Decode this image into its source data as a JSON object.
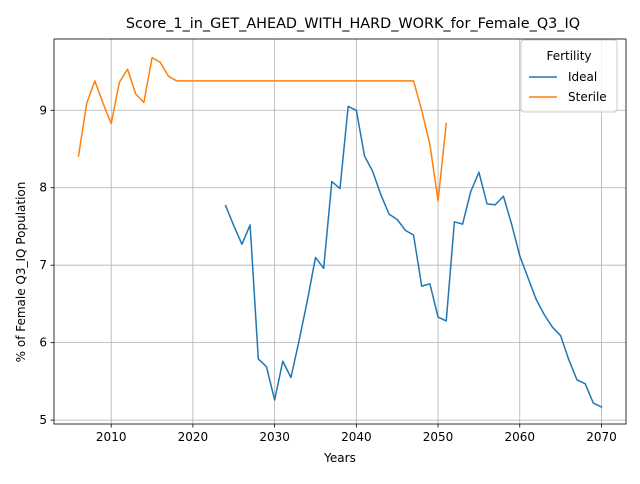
{
  "chart_data": {
    "type": "line",
    "title": "Score_1_in_GET_AHEAD_WITH_HARD_WORK_for_Female_Q3_IQ",
    "xlabel": "Years",
    "ylabel": "% of Female Q3_IQ Population",
    "xlim": [
      2003,
      2073
    ],
    "ylim": [
      4.95,
      9.92
    ],
    "xticks": [
      2010,
      2020,
      2030,
      2040,
      2050,
      2060,
      2070
    ],
    "yticks": [
      5,
      6,
      7,
      8,
      9
    ],
    "grid": true,
    "legend": {
      "title": "Fertility",
      "placement": "top-right"
    },
    "series": [
      {
        "name": "Ideal",
        "color": "#1f77b4",
        "x": [
          2024,
          2025,
          2026,
          2027,
          2028,
          2029,
          2030,
          2031,
          2032,
          2033,
          2034,
          2035,
          2036,
          2037,
          2038,
          2039,
          2040,
          2041,
          2042,
          2043,
          2044,
          2045,
          2046,
          2047,
          2048,
          2049,
          2050,
          2051,
          2052,
          2053,
          2054,
          2055,
          2056,
          2057,
          2058,
          2059,
          2060,
          2061,
          2062,
          2063,
          2064,
          2065,
          2066,
          2067,
          2068,
          2069,
          2070
        ],
        "y": [
          7.77,
          7.51,
          7.27,
          7.52,
          5.79,
          5.69,
          5.26,
          5.76,
          5.55,
          6.03,
          6.54,
          7.1,
          6.96,
          8.08,
          7.99,
          9.05,
          9.0,
          8.41,
          8.21,
          7.91,
          7.66,
          7.59,
          7.45,
          7.39,
          6.73,
          6.76,
          6.33,
          6.28,
          7.56,
          7.53,
          7.95,
          8.2,
          7.79,
          7.78,
          7.89,
          7.53,
          7.12,
          6.84,
          6.56,
          6.36,
          6.2,
          6.09,
          5.78,
          5.52,
          5.47,
          5.22,
          5.17
        ]
      },
      {
        "name": "Sterile",
        "color": "#ff7f0e",
        "x": [
          2006,
          2007,
          2008,
          2009,
          2010,
          2011,
          2012,
          2013,
          2014,
          2015,
          2016,
          2017,
          2018,
          2019,
          2020,
          2021,
          2022,
          2023,
          2024,
          2025,
          2026,
          2027,
          2028,
          2029,
          2030,
          2031,
          2032,
          2033,
          2034,
          2035,
          2036,
          2037,
          2038,
          2039,
          2040,
          2041,
          2042,
          2043,
          2044,
          2045,
          2046,
          2047,
          2048,
          2049,
          2050,
          2051
        ],
        "y": [
          8.41,
          9.09,
          9.38,
          9.09,
          8.83,
          9.36,
          9.53,
          9.21,
          9.1,
          9.68,
          9.62,
          9.44,
          9.38,
          9.38,
          9.38,
          9.38,
          9.38,
          9.38,
          9.38,
          9.38,
          9.38,
          9.38,
          9.38,
          9.38,
          9.38,
          9.38,
          9.38,
          9.38,
          9.38,
          9.38,
          9.38,
          9.38,
          9.38,
          9.38,
          9.38,
          9.38,
          9.38,
          9.38,
          9.38,
          9.38,
          9.38,
          9.38,
          9.0,
          8.56,
          7.83,
          8.83
        ]
      }
    ]
  }
}
